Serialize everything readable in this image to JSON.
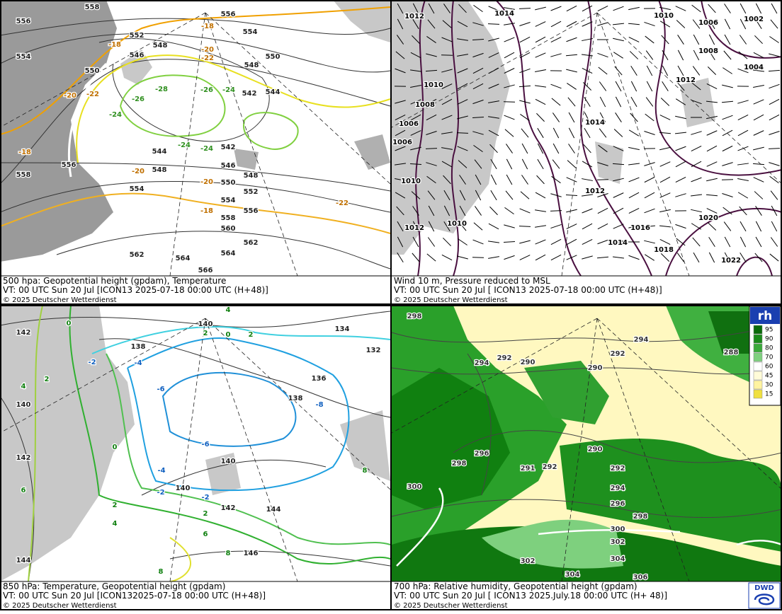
{
  "panels": [
    {
      "caption": [
        "500 hpa: Geopotential height (gpdam), Temperature",
        "VT: 00 UTC Sun  20 Jul [ICON13 2025-07-18 00:00 UTC  (H+48)]",
        "© 2025 Deutscher Wetterdienst"
      ],
      "height_labels": [
        "558",
        "556",
        "556",
        "554",
        "552",
        "554",
        "548",
        "550",
        "546",
        "548",
        "550",
        "544",
        "542",
        "542",
        "546",
        "548",
        "550",
        "552",
        "554",
        "556",
        "558",
        "560",
        "562",
        "564",
        "566",
        "564",
        "562",
        "558",
        "556",
        "554",
        "548",
        "544"
      ],
      "temp_labels": [
        "-18",
        "-18",
        "-20",
        "-22",
        "-20",
        "-22",
        "-24",
        "-26",
        "-28",
        "-26",
        "-24",
        "-24",
        "-24",
        "-18",
        "-20",
        "-20",
        "-18",
        "-22"
      ]
    },
    {
      "caption": [
        "Wind 10 m, Pressure reduced to MSL",
        "VT: 00 UTC Sun  20 Jul [ ICON13 2025-07-18 00:00 UTC  (H+48)]",
        "© 2025 Deutscher Wetterdienst"
      ],
      "pressure_labels": [
        "1012",
        "1014",
        "1010",
        "1006",
        "1002",
        "1008",
        "1004",
        "1012",
        "1010",
        "1008",
        "1014",
        "1006",
        "1006",
        "1010",
        "1012",
        "1012",
        "1010",
        "1016",
        "1020",
        "1014",
        "1018",
        "1022"
      ]
    },
    {
      "caption": [
        "850 hPa:  Temperature, Geopotential height (gpdam)",
        "VT: 00 UTC Sun  20 Jul [ICON132025-07-18 00:00 UTC (H+48)]",
        "© 2025 Deutscher Wetterdienst"
      ],
      "temp_labels": [
        "0",
        "4",
        "2",
        "0",
        "2",
        "-2",
        "-4",
        "-6",
        "-8",
        "0",
        "-6",
        "-4",
        "-2",
        "-2",
        "2",
        "2",
        "4",
        "6",
        "8",
        "8",
        "6",
        "4",
        "2",
        "8"
      ],
      "height_labels": [
        "140",
        "142",
        "138",
        "134",
        "132",
        "136",
        "138",
        "140",
        "142",
        "140",
        "140",
        "142",
        "144",
        "146",
        "144"
      ]
    },
    {
      "caption": [
        "700 hPa:  Relative humidity, Geopotential height (gpdam)",
        "VT: 00 UTC Sun  20 Jul [ ICON13  2025.July.18 00:00 UTC (H+ 48)]",
        "© 2025 Deutscher Wetterdienst"
      ],
      "height_labels": [
        "298",
        "294",
        "292",
        "288",
        "290",
        "290",
        "292",
        "294",
        "290",
        "296",
        "298",
        "291",
        "292",
        "292",
        "294",
        "296",
        "298",
        "300",
        "300",
        "302",
        "304",
        "302",
        "304",
        "306"
      ],
      "legend": {
        "title": "rh",
        "ticks": [
          "95",
          "90",
          "80",
          "70",
          "60",
          "45",
          "30",
          "15"
        ]
      },
      "logo": "DWD"
    }
  ]
}
